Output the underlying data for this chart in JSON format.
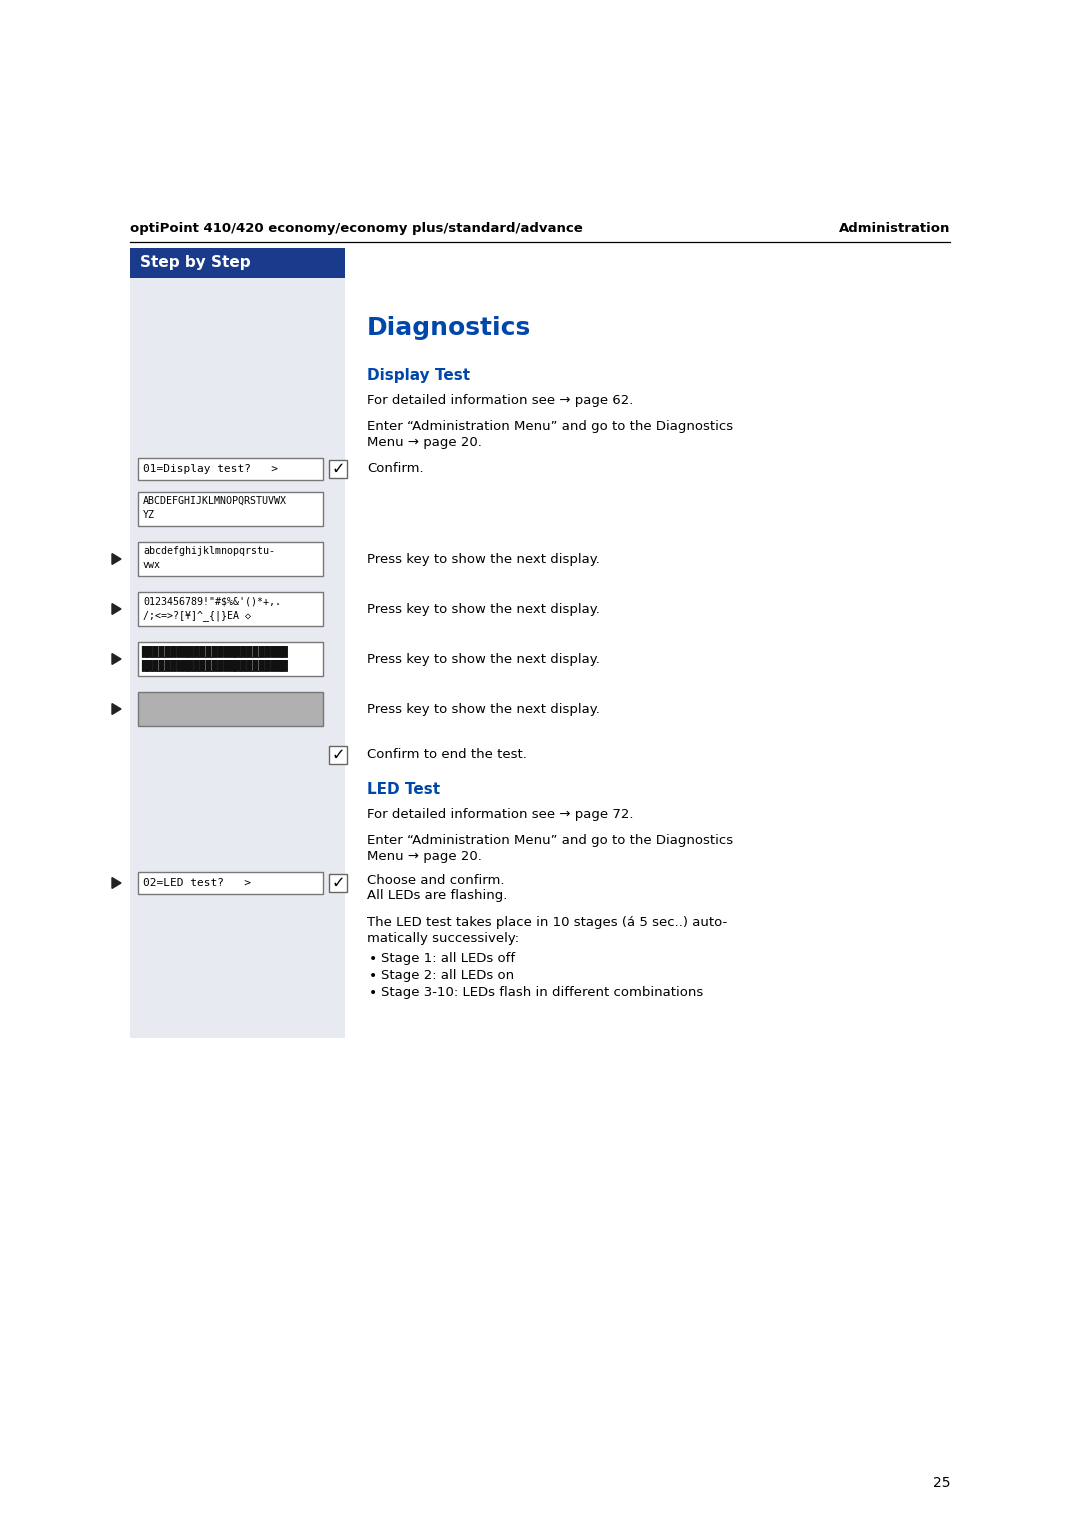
{
  "bg_color": "#ffffff",
  "left_panel_color": "#e8eaf2",
  "header_left": "optiPoint 410/420 economy/economy plus/standard/advance",
  "header_right": "Administration",
  "step_by_step_bg": "#1a3a8c",
  "step_by_step_text": "Step by Step",
  "section_title": "Diagnostics",
  "section_color": "#0047ab",
  "display_test_title": "Display Test",
  "display_test_color": "#0047ab",
  "led_test_title": "LED Test",
  "led_test_color": "#0047ab",
  "page_number": "25",
  "body_text_color": "#000000",
  "display_box_border": "#777777",
  "display_box_bg": "#ffffff",
  "display_box_filled_bg": "#b0b0b0",
  "arrow_icon_color": "#222222",
  "header_line_color": "#000000",
  "checkmark_border": "#666666"
}
